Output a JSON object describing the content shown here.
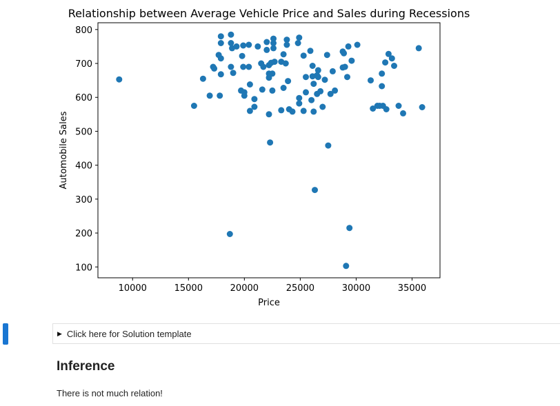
{
  "chart_data": {
    "type": "scatter",
    "title": "Relationship between Average Vehicle Price and Sales during Recessions",
    "xlabel": "Price",
    "ylabel": "Automobile Sales",
    "xlim": [
      6900,
      37500
    ],
    "ylim": [
      68,
      820
    ],
    "xticks": [
      10000,
      15000,
      20000,
      25000,
      30000,
      35000
    ],
    "yticks": [
      100,
      200,
      300,
      400,
      500,
      600,
      700,
      800
    ],
    "grid": false,
    "marker_color": "#1f77b4",
    "points": [
      [
        8800,
        653
      ],
      [
        15500,
        575
      ],
      [
        16300,
        655
      ],
      [
        16900,
        605
      ],
      [
        17200,
        690
      ],
      [
        17300,
        685
      ],
      [
        17700,
        725
      ],
      [
        17800,
        605
      ],
      [
        17900,
        780
      ],
      [
        17900,
        760
      ],
      [
        17900,
        715
      ],
      [
        17900,
        668
      ],
      [
        18700,
        197
      ],
      [
        18800,
        785
      ],
      [
        18800,
        760
      ],
      [
        18800,
        690
      ],
      [
        18900,
        745
      ],
      [
        19000,
        672
      ],
      [
        19300,
        750
      ],
      [
        19700,
        620
      ],
      [
        19800,
        722
      ],
      [
        19900,
        690
      ],
      [
        19900,
        753
      ],
      [
        20000,
        615
      ],
      [
        20000,
        605
      ],
      [
        20400,
        755
      ],
      [
        20400,
        690
      ],
      [
        20500,
        638
      ],
      [
        20500,
        560
      ],
      [
        20900,
        572
      ],
      [
        20900,
        595
      ],
      [
        21200,
        750
      ],
      [
        21500,
        700
      ],
      [
        21600,
        623
      ],
      [
        21700,
        690
      ],
      [
        22000,
        763
      ],
      [
        22000,
        740
      ],
      [
        22200,
        695
      ],
      [
        22200,
        670
      ],
      [
        22200,
        658
      ],
      [
        22200,
        550
      ],
      [
        22300,
        467
      ],
      [
        22400,
        702
      ],
      [
        22500,
        620
      ],
      [
        22500,
        670
      ],
      [
        22600,
        773
      ],
      [
        22600,
        760
      ],
      [
        22600,
        745
      ],
      [
        22700,
        705
      ],
      [
        23300,
        562
      ],
      [
        23300,
        705
      ],
      [
        23500,
        727
      ],
      [
        23500,
        628
      ],
      [
        23700,
        700
      ],
      [
        23800,
        770
      ],
      [
        23800,
        755
      ],
      [
        23900,
        648
      ],
      [
        24000,
        565
      ],
      [
        24300,
        558
      ],
      [
        24800,
        760
      ],
      [
        24900,
        776
      ],
      [
        24900,
        598
      ],
      [
        24900,
        582
      ],
      [
        25300,
        560
      ],
      [
        25300,
        723
      ],
      [
        25500,
        660
      ],
      [
        25500,
        615
      ],
      [
        25900,
        737
      ],
      [
        26000,
        592
      ],
      [
        26100,
        693
      ],
      [
        26100,
        662
      ],
      [
        26200,
        640
      ],
      [
        26200,
        558
      ],
      [
        26300,
        327
      ],
      [
        26500,
        665
      ],
      [
        26500,
        610
      ],
      [
        26600,
        680
      ],
      [
        26600,
        660
      ],
      [
        26800,
        618
      ],
      [
        27000,
        572
      ],
      [
        27200,
        652
      ],
      [
        27400,
        725
      ],
      [
        27500,
        458
      ],
      [
        27700,
        610
      ],
      [
        27900,
        677
      ],
      [
        28100,
        620
      ],
      [
        28800,
        735
      ],
      [
        28800,
        688
      ],
      [
        28900,
        730
      ],
      [
        29000,
        690
      ],
      [
        29100,
        103
      ],
      [
        29200,
        660
      ],
      [
        29300,
        750
      ],
      [
        29400,
        215
      ],
      [
        29600,
        708
      ],
      [
        30100,
        755
      ],
      [
        31300,
        650
      ],
      [
        31500,
        567
      ],
      [
        31900,
        575
      ],
      [
        32100,
        575
      ],
      [
        32300,
        670
      ],
      [
        32300,
        633
      ],
      [
        32400,
        575
      ],
      [
        32600,
        703
      ],
      [
        32700,
        565
      ],
      [
        32900,
        728
      ],
      [
        33200,
        715
      ],
      [
        33400,
        693
      ],
      [
        33800,
        575
      ],
      [
        34200,
        553
      ],
      [
        35600,
        745
      ],
      [
        35900,
        571
      ]
    ]
  },
  "solution": {
    "label": "Click here for Solution template"
  },
  "inference": {
    "heading": "Inference",
    "text": "There is not much relation!"
  }
}
